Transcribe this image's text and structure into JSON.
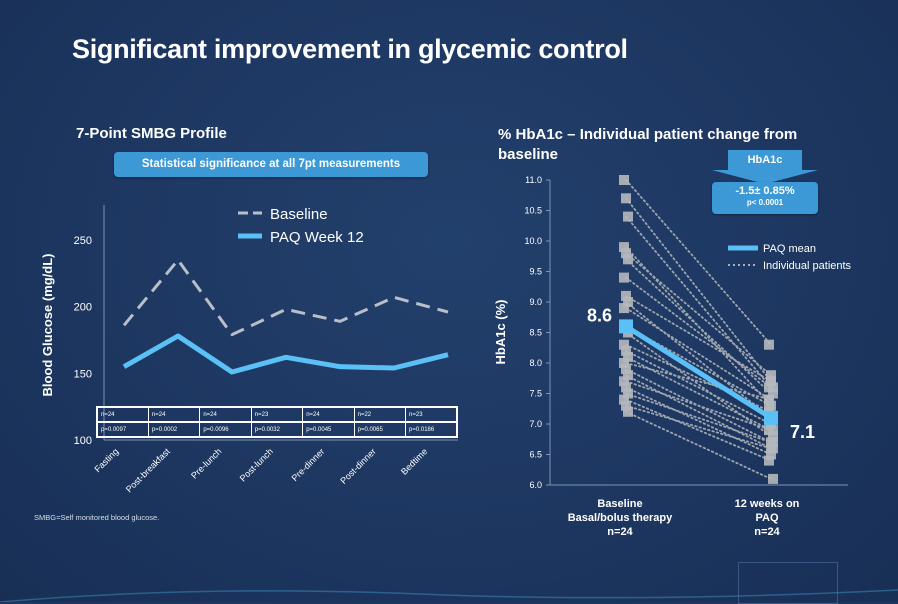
{
  "slide": {
    "title": "Significant improvement in glycemic control",
    "footnote": "SMBG=Self monitored blood glucose."
  },
  "left_panel": {
    "subtitle": "7-Point SMBG Profile",
    "significance_banner": "Statistical significance at all 7pt measurements",
    "n_values": [
      "n=24",
      "n=24",
      "n=24",
      "n=23",
      "n=24",
      "n=22",
      "n=23"
    ],
    "p_values": [
      "p=0.0097",
      "p=0.0002",
      "p=0.0096",
      "p=0.0032",
      "p=0.0045",
      "p=0.0065",
      "p=0.0186"
    ]
  },
  "right_panel": {
    "subtitle": "% HbA1c – Individual patient change from baseline",
    "callout_label": "HbA1c",
    "callout_value": "-1.5± 0.85%",
    "callout_p": "p< 0.0001",
    "baseline_mean_label": "8.6",
    "week12_mean_label": "7.1",
    "x_label_1_lines": [
      "Baseline",
      "Basal/bolus therapy",
      "n=24"
    ],
    "x_label_2_lines": [
      "12 weeks on",
      "PAQ",
      "n=24"
    ]
  },
  "colors": {
    "background": "#1d3761",
    "baseline_line": "#b9bfc8",
    "paq_line": "#5bc0f5",
    "accent_box": "#3d98d6",
    "individual_points": "#b5b8bd"
  },
  "chart_data": [
    {
      "type": "line",
      "title": "7-Point SMBG Profile",
      "categories": [
        "Fasting",
        "Post-breakfast",
        "Pre-lunch",
        "Post-lunch",
        "Pre-dinner",
        "Post-dinner",
        "Bedtime"
      ],
      "series": [
        {
          "name": "Baseline",
          "style": "dashed",
          "values": [
            186,
            235,
            179,
            198,
            189,
            207,
            196
          ]
        },
        {
          "name": "PAQ Week 12",
          "style": "solid",
          "values": [
            155,
            178,
            151,
            162,
            155,
            154,
            164
          ]
        }
      ],
      "ylabel": "Blood Glucose (mg/dL)",
      "yticks": [
        100,
        150,
        200,
        250
      ],
      "ylim": [
        100,
        270
      ],
      "legend": "top"
    },
    {
      "type": "line",
      "title": "% HbA1c – Individual patient change from baseline",
      "categories": [
        "Baseline Basal/bolus therapy n=24",
        "12 weeks on PAQ n=24"
      ],
      "ylabel": "HbA1c (%)",
      "yticks": [
        "6.0",
        "6.5",
        "7.0",
        "7.5",
        "8.0",
        "8.5",
        "9.0",
        "9.5",
        "10.0",
        "10.5",
        "11.0"
      ],
      "ylim": [
        6.0,
        11.0
      ],
      "series": [
        {
          "name": "PAQ mean",
          "style": "solid",
          "values": [
            8.6,
            7.1
          ]
        }
      ],
      "individual_patients": {
        "name": "Individual patients",
        "style": "dotted",
        "pairs": [
          [
            11.0,
            8.3
          ],
          [
            10.7,
            7.7
          ],
          [
            10.4,
            7.6
          ],
          [
            9.9,
            7.3
          ],
          [
            9.8,
            7.8
          ],
          [
            9.7,
            7.5
          ],
          [
            9.4,
            7.6
          ],
          [
            9.1,
            7.7
          ],
          [
            9.0,
            7.1
          ],
          [
            8.9,
            7.4
          ],
          [
            8.6,
            7.3
          ],
          [
            8.5,
            6.8
          ],
          [
            8.3,
            7.2
          ],
          [
            8.2,
            7.0
          ],
          [
            8.1,
            6.9
          ],
          [
            8.0,
            7.4
          ],
          [
            7.9,
            6.7
          ],
          [
            7.8,
            6.6
          ],
          [
            7.7,
            6.9
          ],
          [
            7.6,
            6.5
          ],
          [
            7.5,
            6.7
          ],
          [
            7.4,
            6.4
          ],
          [
            7.3,
            6.6
          ],
          [
            7.2,
            6.1
          ]
        ]
      },
      "legend": "right"
    }
  ]
}
